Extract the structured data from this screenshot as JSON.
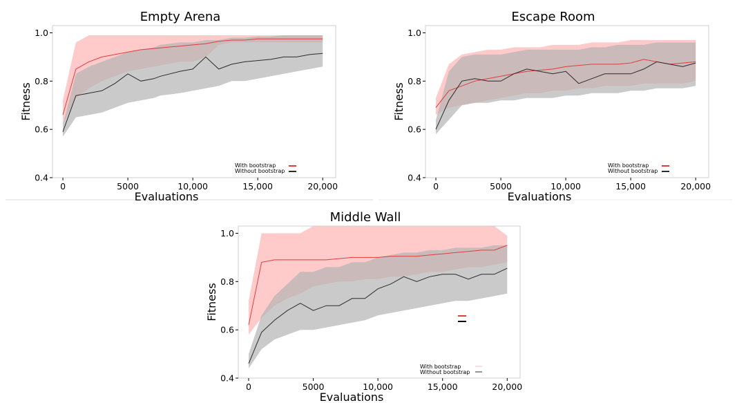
{
  "figure": {
    "xlabel": "Evaluations",
    "ylabel": "Fitness",
    "series_colors": {
      "with": "#e03c3c",
      "without": "#2b2b2b",
      "with_band": "#ffb8b8",
      "without_band": "#b4b4b4"
    }
  },
  "chart_data": [
    {
      "type": "line",
      "title": "Empty Arena",
      "xlabel": "Evaluations",
      "ylabel": "Fitness",
      "xlim": [
        -800,
        21000
      ],
      "ylim": [
        0.4,
        1.03
      ],
      "xticks": [
        0,
        5000,
        10000,
        15000,
        20000
      ],
      "xtick_labels": [
        "0",
        "5000",
        "10,000",
        "15,000",
        "20,000"
      ],
      "yticks": [
        0.4,
        0.6,
        0.8,
        1.0
      ],
      "ytick_labels": [
        "0.4",
        "0.6",
        "0.8",
        "1.0"
      ],
      "legend_position": "bottom-right",
      "series": [
        {
          "name": "With bootstrap",
          "color": "#e03c3c",
          "x": [
            0,
            1000,
            2000,
            3000,
            4000,
            5000,
            6000,
            7000,
            8000,
            9000,
            10000,
            11000,
            12000,
            13000,
            14000,
            15000,
            16000,
            17000,
            18000,
            19000,
            20000
          ],
          "values": [
            0.66,
            0.85,
            0.88,
            0.9,
            0.91,
            0.92,
            0.93,
            0.935,
            0.94,
            0.945,
            0.95,
            0.955,
            0.965,
            0.97,
            0.97,
            0.975,
            0.975,
            0.975,
            0.975,
            0.975,
            0.975
          ],
          "upper": [
            0.72,
            0.96,
            0.99,
            0.99,
            0.99,
            0.99,
            0.99,
            0.99,
            0.99,
            0.99,
            0.99,
            0.99,
            0.99,
            0.99,
            0.99,
            0.99,
            0.99,
            0.99,
            0.99,
            0.99,
            0.99
          ],
          "lower": [
            0.62,
            0.73,
            0.77,
            0.8,
            0.82,
            0.84,
            0.85,
            0.86,
            0.87,
            0.88,
            0.88,
            0.9,
            0.95,
            0.96,
            0.96,
            0.96,
            0.96,
            0.96,
            0.96,
            0.96,
            0.96
          ]
        },
        {
          "name": "Without bootstrap",
          "color": "#2b2b2b",
          "x": [
            0,
            1000,
            2000,
            3000,
            4000,
            5000,
            6000,
            7000,
            7500,
            9000,
            10000,
            11000,
            12000,
            13000,
            14000,
            15000,
            16000,
            17000,
            18000,
            19000,
            20000
          ],
          "values": [
            0.59,
            0.74,
            0.75,
            0.76,
            0.79,
            0.83,
            0.8,
            0.81,
            0.82,
            0.84,
            0.85,
            0.9,
            0.85,
            0.87,
            0.88,
            0.885,
            0.89,
            0.9,
            0.9,
            0.91,
            0.915
          ],
          "upper": [
            0.62,
            0.83,
            0.86,
            0.88,
            0.9,
            0.92,
            0.93,
            0.94,
            0.95,
            0.96,
            0.96,
            0.97,
            0.97,
            0.98,
            0.98,
            0.985,
            0.985,
            0.99,
            0.99,
            0.99,
            0.99
          ],
          "lower": [
            0.57,
            0.65,
            0.66,
            0.67,
            0.69,
            0.71,
            0.72,
            0.73,
            0.74,
            0.75,
            0.76,
            0.77,
            0.78,
            0.8,
            0.8,
            0.81,
            0.82,
            0.83,
            0.84,
            0.85,
            0.86
          ]
        }
      ]
    },
    {
      "type": "line",
      "title": "Escape Room",
      "xlabel": "Evaluations",
      "ylabel": "Fitness",
      "xlim": [
        -800,
        21000
      ],
      "ylim": [
        0.4,
        1.03
      ],
      "xticks": [
        0,
        5000,
        10000,
        15000,
        20000
      ],
      "xtick_labels": [
        "0",
        "5000",
        "10,000",
        "15,000",
        "20,000"
      ],
      "yticks": [
        0.4,
        0.6,
        0.8,
        1.0
      ],
      "ytick_labels": [
        "0.4",
        "0.6",
        "0.8",
        "1.0"
      ],
      "legend_position": "bottom-right",
      "series": [
        {
          "name": "With bootstrap",
          "color": "#e03c3c",
          "x": [
            0,
            1000,
            2000,
            3000,
            4000,
            5000,
            6000,
            7000,
            8000,
            9000,
            10000,
            11000,
            12000,
            13000,
            14000,
            15000,
            16000,
            17000,
            18000,
            19000,
            20000
          ],
          "values": [
            0.69,
            0.76,
            0.78,
            0.8,
            0.81,
            0.82,
            0.83,
            0.84,
            0.845,
            0.85,
            0.86,
            0.865,
            0.87,
            0.87,
            0.87,
            0.875,
            0.89,
            0.88,
            0.87,
            0.875,
            0.88
          ],
          "upper": [
            0.73,
            0.87,
            0.91,
            0.92,
            0.93,
            0.93,
            0.94,
            0.94,
            0.94,
            0.95,
            0.95,
            0.95,
            0.96,
            0.96,
            0.96,
            0.97,
            0.97,
            0.97,
            0.97,
            0.97,
            0.97
          ],
          "lower": [
            0.66,
            0.69,
            0.7,
            0.71,
            0.72,
            0.73,
            0.74,
            0.75,
            0.75,
            0.76,
            0.76,
            0.77,
            0.77,
            0.78,
            0.78,
            0.78,
            0.79,
            0.79,
            0.79,
            0.79,
            0.8
          ]
        },
        {
          "name": "Without bootstrap",
          "color": "#2b2b2b",
          "x": [
            0,
            1000,
            2000,
            3000,
            4000,
            5000,
            6000,
            7000,
            8000,
            9000,
            10000,
            11000,
            12000,
            13000,
            14000,
            15000,
            16000,
            17000,
            18000,
            19000,
            20000
          ],
          "values": [
            0.6,
            0.72,
            0.8,
            0.81,
            0.8,
            0.8,
            0.83,
            0.85,
            0.84,
            0.83,
            0.84,
            0.79,
            0.81,
            0.83,
            0.83,
            0.83,
            0.85,
            0.88,
            0.87,
            0.86,
            0.875
          ],
          "upper": [
            0.64,
            0.84,
            0.9,
            0.91,
            0.91,
            0.91,
            0.92,
            0.93,
            0.93,
            0.93,
            0.93,
            0.93,
            0.94,
            0.94,
            0.95,
            0.95,
            0.95,
            0.96,
            0.96,
            0.96,
            0.96
          ],
          "lower": [
            0.58,
            0.64,
            0.7,
            0.71,
            0.71,
            0.72,
            0.72,
            0.73,
            0.73,
            0.73,
            0.74,
            0.74,
            0.75,
            0.75,
            0.75,
            0.76,
            0.76,
            0.77,
            0.77,
            0.77,
            0.78
          ]
        }
      ]
    },
    {
      "type": "line",
      "title": "Middle Wall",
      "xlabel": "Evaluations",
      "ylabel": "Fitness",
      "xlim": [
        -800,
        21000
      ],
      "ylim": [
        0.4,
        1.03
      ],
      "xticks": [
        0,
        5000,
        10000,
        15000,
        20000
      ],
      "xtick_labels": [
        "0",
        "5000",
        "10,000",
        "15,000",
        "20,000"
      ],
      "yticks": [
        0.4,
        0.6,
        0.8,
        1.0
      ],
      "ytick_labels": [
        "0.4",
        "0.6",
        "0.8",
        "1.0"
      ],
      "legend_position": "bottom-right",
      "series": [
        {
          "name": "With bootstrap",
          "color": "#e03c3c",
          "x": [
            0,
            1000,
            2000,
            3000,
            4000,
            5000,
            6000,
            7000,
            8000,
            9000,
            10000,
            11000,
            12000,
            13000,
            14000,
            15000,
            16000,
            17000,
            18000,
            19000,
            20000
          ],
          "values": [
            0.62,
            0.88,
            0.89,
            0.89,
            0.89,
            0.89,
            0.89,
            0.895,
            0.9,
            0.9,
            0.9,
            0.905,
            0.905,
            0.905,
            0.91,
            0.915,
            0.92,
            0.925,
            0.93,
            0.93,
            0.95
          ],
          "upper": [
            0.72,
            1.0,
            1.0,
            1.0,
            1.0,
            1.03,
            1.03,
            1.03,
            1.03,
            1.03,
            1.03,
            1.03,
            1.03,
            1.03,
            1.03,
            1.03,
            1.03,
            1.03,
            1.03,
            1.03,
            0.99
          ],
          "lower": [
            0.58,
            0.65,
            0.7,
            0.73,
            0.75,
            0.78,
            0.79,
            0.8,
            0.8,
            0.81,
            0.81,
            0.82,
            0.82,
            0.83,
            0.84,
            0.84,
            0.85,
            0.86,
            0.86,
            0.87,
            0.88
          ]
        },
        {
          "name": "Without bootstrap",
          "color": "#2b2b2b",
          "x": [
            0,
            1000,
            2000,
            3000,
            4000,
            5000,
            6000,
            7000,
            8000,
            9000,
            10000,
            11000,
            12000,
            13000,
            14000,
            15000,
            16000,
            17000,
            18000,
            19000,
            20000
          ],
          "values": [
            0.46,
            0.59,
            0.64,
            0.68,
            0.71,
            0.68,
            0.7,
            0.7,
            0.73,
            0.73,
            0.77,
            0.79,
            0.82,
            0.8,
            0.82,
            0.83,
            0.83,
            0.81,
            0.83,
            0.83,
            0.855
          ],
          "upper": [
            0.5,
            0.66,
            0.74,
            0.79,
            0.84,
            0.84,
            0.86,
            0.86,
            0.88,
            0.88,
            0.9,
            0.91,
            0.92,
            0.92,
            0.93,
            0.93,
            0.94,
            0.94,
            0.94,
            0.95,
            0.95
          ],
          "lower": [
            0.44,
            0.52,
            0.56,
            0.58,
            0.6,
            0.6,
            0.61,
            0.62,
            0.63,
            0.64,
            0.66,
            0.67,
            0.68,
            0.69,
            0.7,
            0.71,
            0.72,
            0.72,
            0.73,
            0.74,
            0.75
          ]
        }
      ]
    }
  ]
}
